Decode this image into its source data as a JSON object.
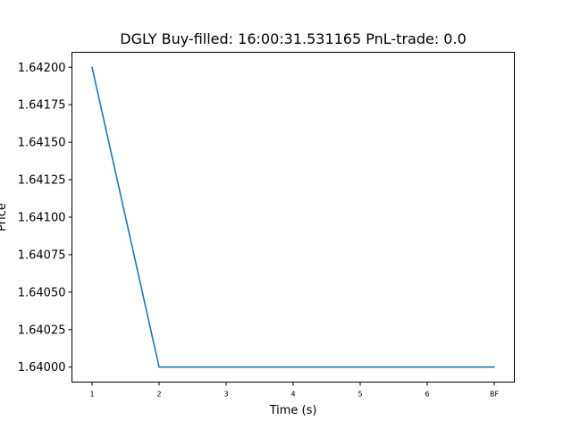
{
  "chart_data": {
    "type": "line",
    "title": "DGLY  Buy-filled:  16:00:31.531165  PnL-trade:  0.0",
    "xlabel": "Time (s)",
    "ylabel": "Price",
    "x_tick_labels": [
      "1",
      "2",
      "3",
      "4",
      "5",
      "6",
      "BF"
    ],
    "y_tick_labels": [
      "1.64000",
      "1.64025",
      "1.64050",
      "1.64075",
      "1.64100",
      "1.64125",
      "1.64150",
      "1.64175",
      "1.64200"
    ],
    "y_ticks": [
      1.64,
      1.64025,
      1.6405,
      1.64075,
      1.641,
      1.64125,
      1.6415,
      1.64175,
      1.642
    ],
    "ylim": [
      1.6399,
      1.6421
    ],
    "grid": false,
    "series": [
      {
        "color": "#1f77b4",
        "x": [
          "1",
          "2",
          "3",
          "4",
          "5",
          "6",
          "BF"
        ],
        "values": [
          1.642,
          1.64,
          1.64,
          1.64,
          1.64,
          1.64,
          1.64
        ]
      }
    ]
  }
}
